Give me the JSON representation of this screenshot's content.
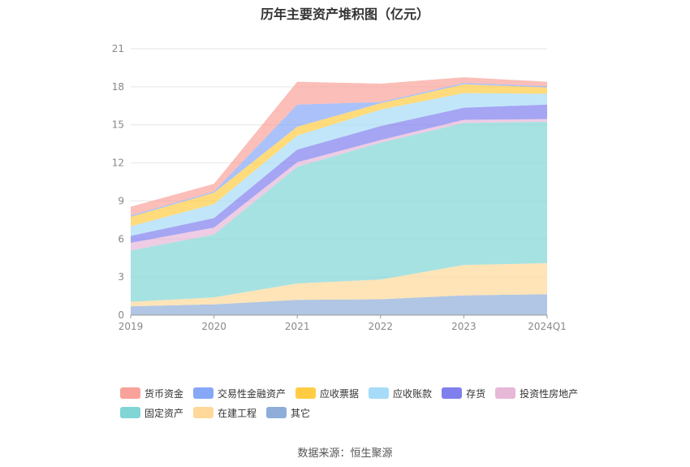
{
  "chart_data": {
    "type": "area",
    "title": "历年主要资产堆积图（亿元）",
    "categories": [
      "2019",
      "2020",
      "2021",
      "2022",
      "2023",
      "2024Q1"
    ],
    "ylim": [
      0,
      21
    ],
    "yticks": [
      0,
      3,
      6,
      9,
      12,
      15,
      18,
      21
    ],
    "grid": true,
    "legend_position": "bottom",
    "series": [
      {
        "name": "其它",
        "color": "#8eaed9",
        "values": [
          0.7,
          0.85,
          1.2,
          1.25,
          1.55,
          1.65
        ]
      },
      {
        "name": "在建工程",
        "color": "#ffd89a",
        "values": [
          0.35,
          0.55,
          1.3,
          1.55,
          2.4,
          2.45
        ]
      },
      {
        "name": "固定资产",
        "color": "#82d5d5",
        "values": [
          4.05,
          4.95,
          9.2,
          10.8,
          11.2,
          11.15
        ]
      },
      {
        "name": "投资性房地产",
        "color": "#e7b7d8",
        "values": [
          0.6,
          0.55,
          0.35,
          0.2,
          0.25,
          0.2
        ]
      },
      {
        "name": "存货",
        "color": "#7f7fee",
        "values": [
          0.55,
          0.75,
          1.0,
          1.1,
          0.95,
          1.15
        ]
      },
      {
        "name": "应收账款",
        "color": "#a6dcf7",
        "values": [
          0.75,
          1.1,
          1.1,
          1.3,
          1.15,
          0.85
        ]
      },
      {
        "name": "应收票据",
        "color": "#ffcc44",
        "values": [
          0.75,
          0.9,
          0.7,
          0.5,
          0.7,
          0.5
        ]
      },
      {
        "name": "交易性金融资产",
        "color": "#86a8f7",
        "values": [
          0.1,
          0.1,
          1.75,
          0.1,
          0.1,
          0.1
        ]
      },
      {
        "name": "货币资金",
        "color": "#f9a29a",
        "values": [
          0.7,
          0.6,
          1.8,
          1.45,
          0.45,
          0.35
        ]
      }
    ]
  },
  "legend": {
    "row1": [
      "货币资金",
      "交易性金融资产",
      "应收票据",
      "应收账款",
      "存货",
      "投资性房地产"
    ],
    "row2": [
      "固定资产",
      "在建工程",
      "其它"
    ]
  },
  "source": "数据来源：恒生聚源"
}
